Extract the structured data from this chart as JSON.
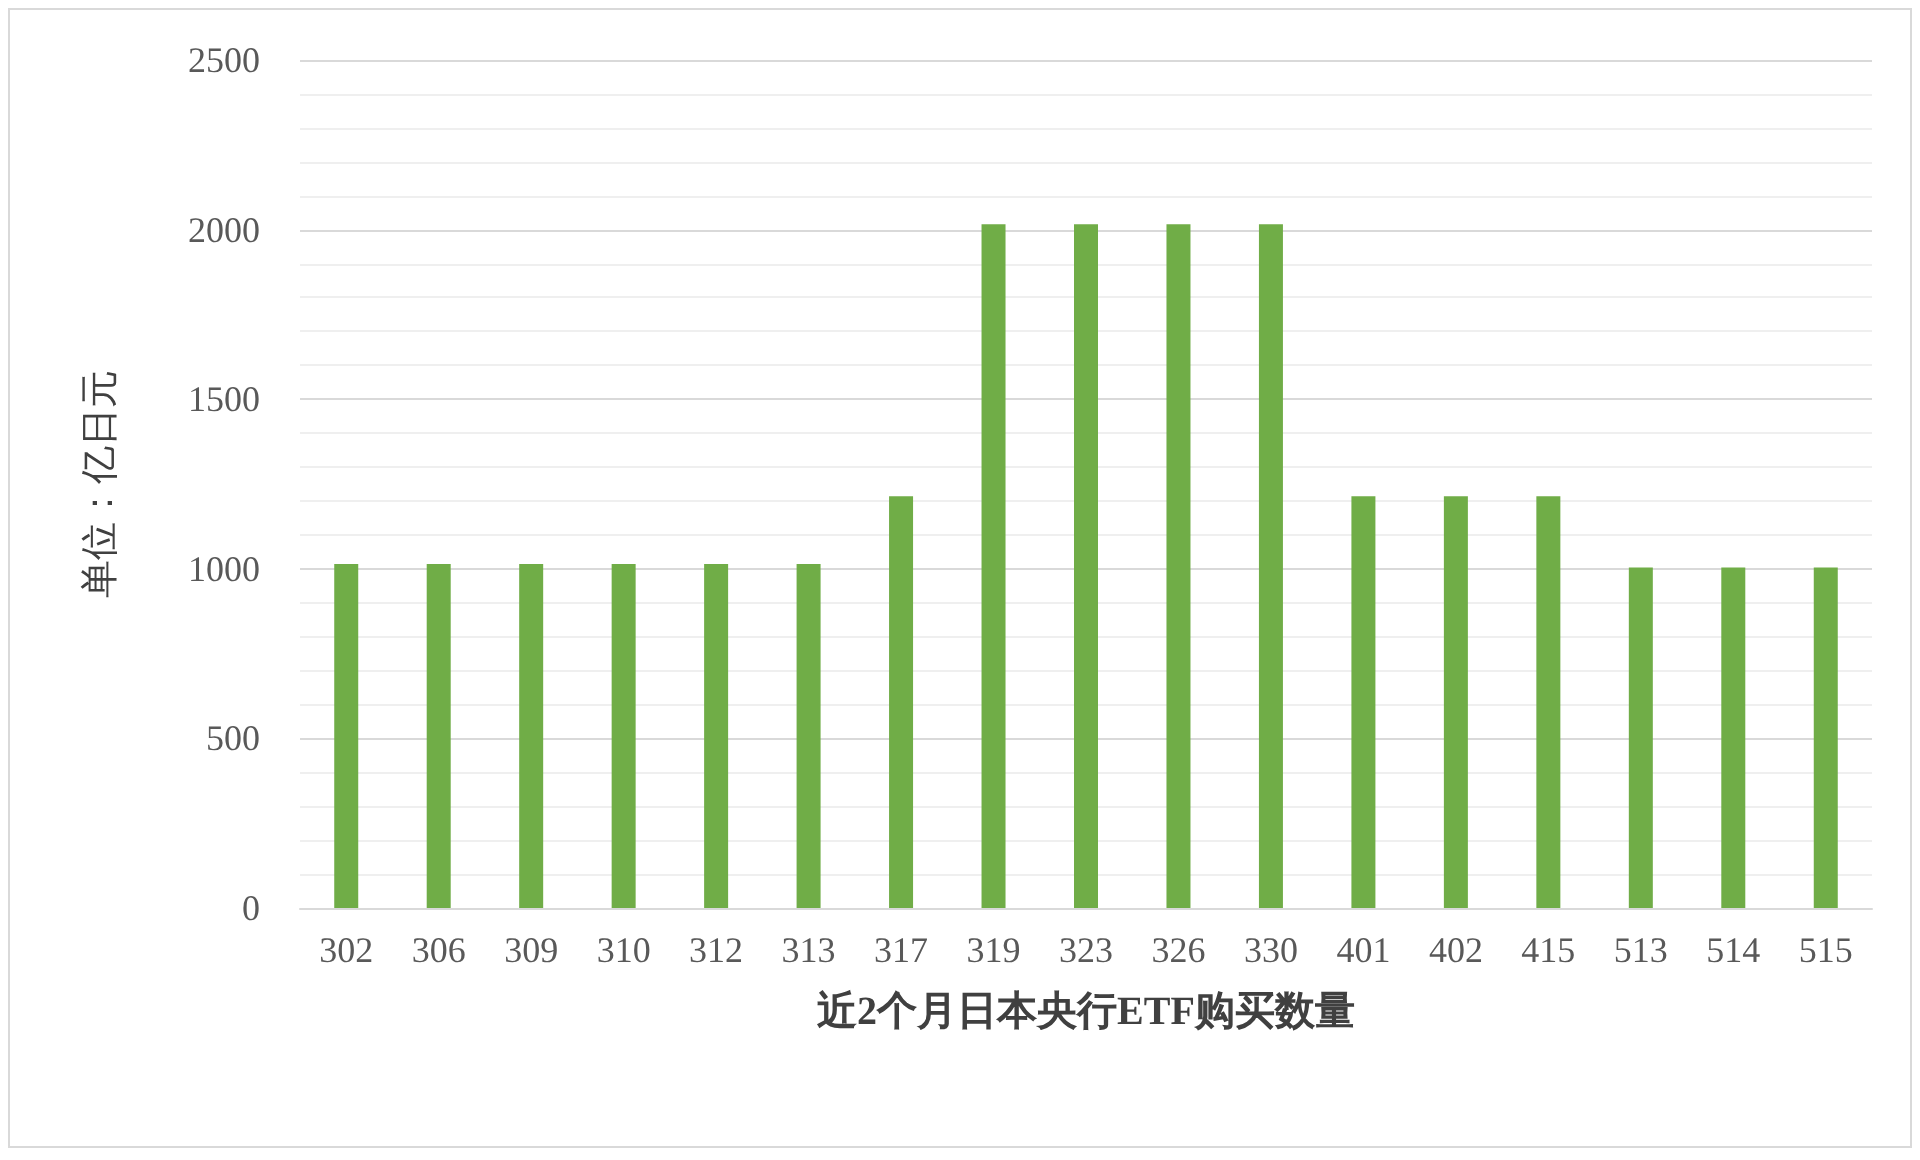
{
  "chart_data": {
    "type": "bar",
    "xlabel": "近2个月日本央行ETF购买数量",
    "ylabel": "单位：亿日元",
    "categories": [
      "302",
      "306",
      "309",
      "310",
      "312",
      "313",
      "317",
      "319",
      "323",
      "326",
      "330",
      "401",
      "402",
      "415",
      "513",
      "514",
      "515"
    ],
    "values": [
      1014,
      1014,
      1014,
      1014,
      1014,
      1014,
      1214,
      2016,
      2016,
      2016,
      2016,
      1214,
      1214,
      1214,
      1004,
      1004,
      1004
    ],
    "color": "#70ad47",
    "ylim": [
      0,
      2500
    ],
    "yticks": [
      0,
      {
        "value": 100,
        "label": null
      },
      {
        "value": 200,
        "label": null
      },
      {
        "value": 300,
        "label": null
      },
      {
        "value": 400,
        "label": null
      },
      500,
      {
        "value": 600,
        "label": null
      },
      {
        "value": 700,
        "label": null
      },
      {
        "value": 800,
        "label": null
      },
      {
        "value": 900,
        "label": null
      },
      1000,
      {
        "value": 1100,
        "label": null
      },
      {
        "value": 1200,
        "label": null
      },
      {
        "value": 1300,
        "label": null
      },
      {
        "value": 1400,
        "label": null
      },
      1500,
      {
        "value": 1600,
        "label": null
      },
      {
        "value": 1700,
        "label": null
      },
      {
        "value": 1800,
        "label": null
      },
      {
        "value": 1900,
        "label": null
      },
      2000,
      {
        "value": 2100,
        "label": null
      },
      {
        "value": 2200,
        "label": null
      },
      {
        "value": 2300,
        "label": null
      },
      {
        "value": 2400,
        "label": null
      },
      2500
    ],
    "grid": true
  }
}
